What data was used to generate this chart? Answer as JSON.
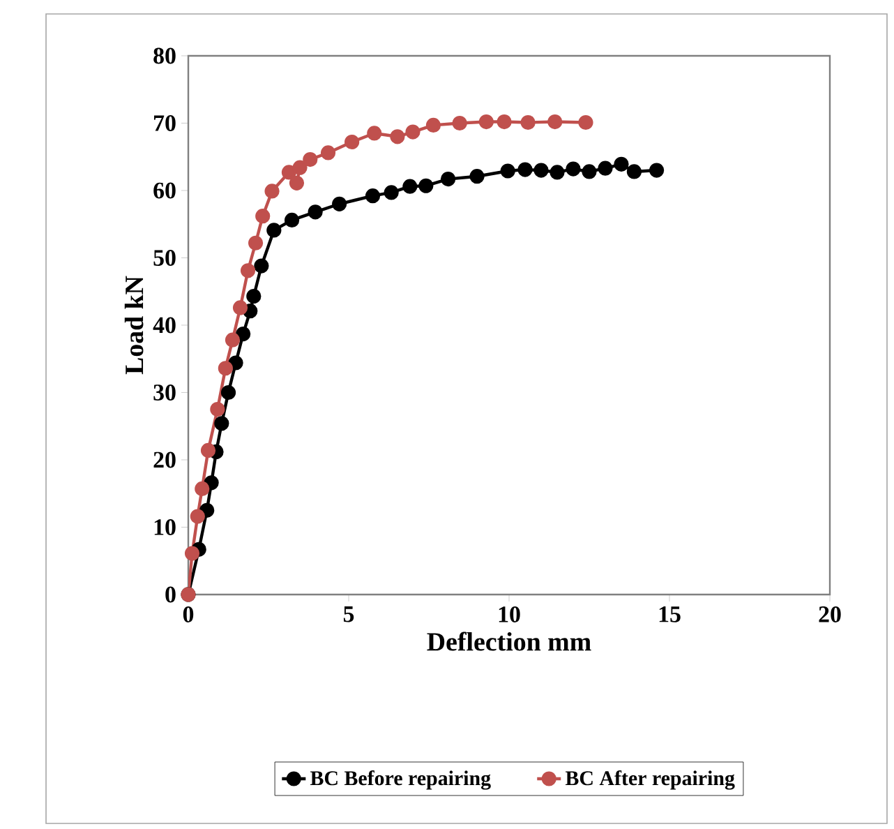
{
  "chart_data": {
    "type": "line",
    "xlabel": "Deflection mm",
    "ylabel": "Load kN",
    "xlim": [
      0,
      20
    ],
    "ylim": [
      0,
      80
    ],
    "xticks": [
      0,
      5,
      10,
      15,
      20
    ],
    "yticks": [
      0,
      10,
      20,
      30,
      40,
      50,
      60,
      70,
      80
    ],
    "grid": false,
    "legend": "bottom",
    "marker": "circle",
    "line_style": "solid",
    "series": [
      {
        "name": "BC Before repairing",
        "color": "#000000",
        "x": [
          0,
          0.33,
          0.58,
          0.72,
          0.87,
          1.04,
          1.25,
          1.48,
          1.71,
          1.93,
          2.04,
          2.28,
          2.67,
          3.23,
          3.96,
          4.71,
          5.75,
          6.33,
          6.91,
          7.41,
          8.1,
          9.0,
          9.96,
          10.5,
          11.0,
          11.5,
          12.0,
          12.5,
          13.0,
          13.5,
          13.9,
          14.6
        ],
        "values": [
          0,
          6.7,
          12.5,
          16.6,
          21.2,
          25.4,
          30.0,
          34.4,
          38.7,
          42.1,
          44.3,
          48.8,
          54.1,
          55.6,
          56.8,
          58.0,
          59.2,
          59.7,
          60.6,
          60.7,
          61.7,
          62.1,
          62.9,
          63.1,
          63.0,
          62.7,
          63.2,
          62.8,
          63.3,
          63.9,
          62.8,
          63.0
        ]
      },
      {
        "name": "BC After repairing",
        "color": "#c0504d",
        "x": [
          0,
          0.12,
          0.29,
          0.43,
          0.62,
          0.91,
          1.16,
          1.38,
          1.62,
          1.86,
          2.1,
          2.32,
          2.61,
          3.14,
          3.38,
          3.48,
          3.8,
          4.36,
          5.1,
          5.8,
          6.52,
          7.0,
          7.64,
          8.46,
          9.29,
          9.85,
          10.59,
          11.43,
          12.39
        ],
        "values": [
          0,
          6.1,
          11.6,
          15.7,
          21.4,
          27.5,
          33.6,
          37.8,
          42.6,
          48.1,
          52.2,
          56.2,
          59.9,
          62.7,
          61.1,
          63.4,
          64.6,
          65.6,
          67.2,
          68.5,
          68.0,
          68.7,
          69.7,
          70.0,
          70.2,
          70.2,
          70.1,
          70.2,
          70.1
        ]
      }
    ]
  }
}
